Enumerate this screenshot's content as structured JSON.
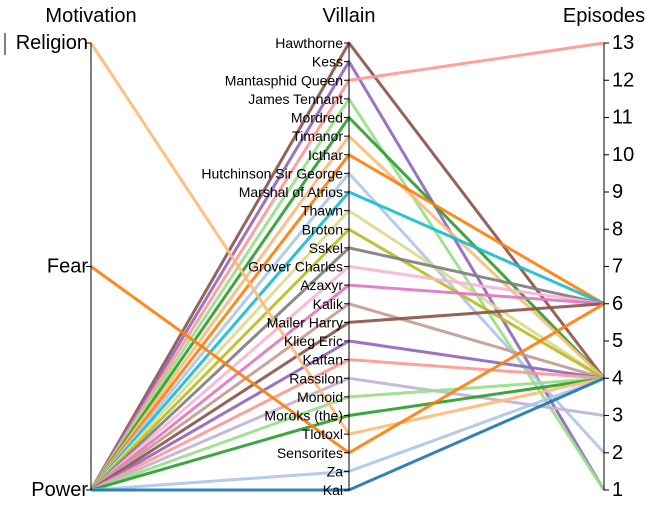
{
  "chart_data": {
    "type": "parallel_coordinates",
    "dimensions": [
      {
        "name": "Motivation",
        "kind": "categorical",
        "ticks": [
          "Religion",
          "Fear",
          "Power"
        ]
      },
      {
        "name": "Villain",
        "kind": "categorical",
        "ticks": [
          "Hawthorne",
          "Kess",
          "Mantasphid Queen",
          "James Tennant",
          "Mordred",
          "Timanor",
          "Icthar",
          "Hutchinson Sir George",
          "Marshal of Atrios",
          "Thawn",
          "Broton",
          "Sskel",
          "Grover Charles",
          "Azaxyr",
          "Kalik",
          "Mailer Harry",
          "Klieg Eric",
          "Kaftan",
          "Rassilon",
          "Monoid",
          "Moroks (the)",
          "Tlotoxl",
          "Sensorites",
          "Za",
          "Kal"
        ]
      },
      {
        "name": "Episodes",
        "kind": "numeric",
        "range": [
          1,
          13
        ],
        "ticks": [
          13,
          12,
          11,
          10,
          9,
          8,
          7,
          6,
          5,
          4,
          3,
          2,
          1
        ]
      }
    ],
    "series": [
      {
        "values": [
          "Power",
          "Hawthorne",
          4
        ],
        "color": "#8c564b"
      },
      {
        "values": [
          "Power",
          "Kess",
          1
        ],
        "color": "#9467bd"
      },
      {
        "values": [
          "Power",
          "Mantasphid Queen",
          13
        ],
        "color": "#ff9896"
      },
      {
        "values": [
          "Power",
          "James Tennant",
          1
        ],
        "color": "#98df8a"
      },
      {
        "values": [
          "Power",
          "Mordred",
          4
        ],
        "color": "#2ca02c"
      },
      {
        "values": [
          "Power",
          "Timanor",
          4
        ],
        "color": "#ffbb78"
      },
      {
        "values": [
          "Power",
          "Icthar",
          6
        ],
        "color": "#ff7f0e"
      },
      {
        "values": [
          "Power",
          "Hutchinson Sir George",
          2
        ],
        "color": "#aec7e8"
      },
      {
        "values": [
          "Power",
          "Marshal of Atrios",
          6
        ],
        "color": "#17becf"
      },
      {
        "values": [
          "Power",
          "Thawn",
          4
        ],
        "color": "#dbdb8d"
      },
      {
        "values": [
          "Power",
          "Broton",
          4
        ],
        "color": "#bcbd22"
      },
      {
        "values": [
          "Power",
          "Sskel",
          6
        ],
        "color": "#7f7f7f"
      },
      {
        "values": [
          "Power",
          "Grover Charles",
          6
        ],
        "color": "#f7b6d2"
      },
      {
        "values": [
          "Power",
          "Azaxyr",
          6
        ],
        "color": "#e377c2"
      },
      {
        "values": [
          "Power",
          "Kalik",
          4
        ],
        "color": "#c49c94"
      },
      {
        "values": [
          "Power",
          "Mailer Harry",
          6
        ],
        "color": "#8c564b"
      },
      {
        "values": [
          "Power",
          "Klieg Eric",
          4
        ],
        "color": "#9467bd"
      },
      {
        "values": [
          "Power",
          "Kaftan",
          4
        ],
        "color": "#ff9896"
      },
      {
        "values": [
          "Power",
          "Rassilon",
          3
        ],
        "color": "#c5b0d5"
      },
      {
        "values": [
          "Power",
          "Monoid",
          4
        ],
        "color": "#98df8a"
      },
      {
        "values": [
          "Power",
          "Moroks (the)",
          4
        ],
        "color": "#2ca02c"
      },
      {
        "values": [
          "Religion",
          "Tlotoxl",
          4
        ],
        "color": "#ffbb78"
      },
      {
        "values": [
          "Fear",
          "Sensorites",
          6
        ],
        "color": "#ff7f0e"
      },
      {
        "values": [
          "Power",
          "Za",
          4
        ],
        "color": "#aec7e8"
      },
      {
        "values": [
          "Power",
          "Kal",
          4
        ],
        "color": "#1f77b4"
      }
    ]
  }
}
